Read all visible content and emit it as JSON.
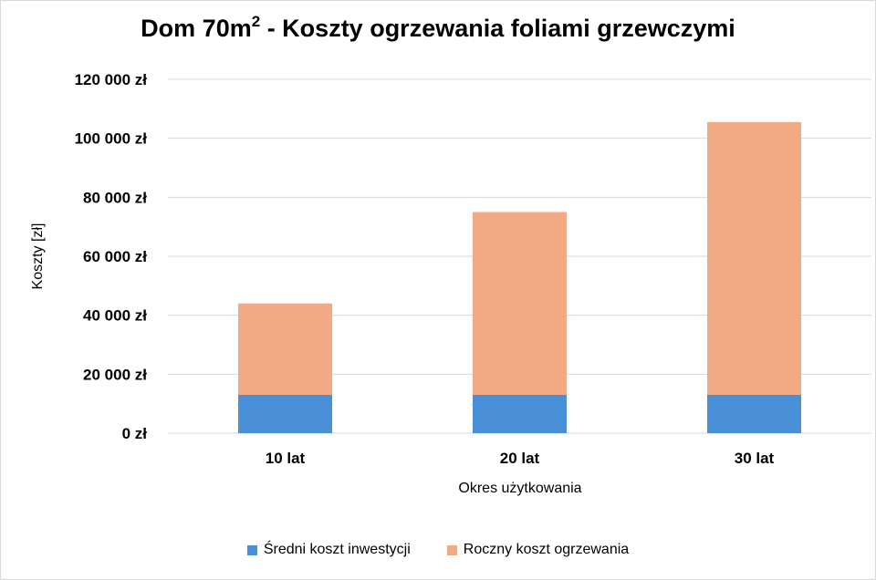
{
  "chart_data": {
    "type": "bar",
    "stacked": true,
    "title": "Dom 70m",
    "title_superscript": "2",
    "title_suffix": " - Koszty ogrzewania foliami grzewczymi",
    "categories": [
      "10 lat",
      "20 lat",
      "30 lat"
    ],
    "series": [
      {
        "name": "Średni koszt inwestycji",
        "color": "#4a90d9",
        "values": [
          13000,
          13000,
          13000
        ]
      },
      {
        "name": "Roczny koszt ogrzewania",
        "color": "#f2aa84",
        "values": [
          31000,
          62000,
          92500
        ]
      }
    ],
    "xlabel": "Okres użytkowania",
    "ylabel": "Koszty [zł]",
    "ylim": [
      0,
      120000
    ],
    "yticks": [
      0,
      20000,
      40000,
      60000,
      80000,
      100000,
      120000
    ],
    "ytick_labels": [
      "0 zł",
      "20 000 zł",
      "40 000 zł",
      "60 000 zł",
      "80 000 zł",
      "100 000 zł",
      "120 000 zł"
    ],
    "grid": true,
    "legend_position": "bottom"
  }
}
